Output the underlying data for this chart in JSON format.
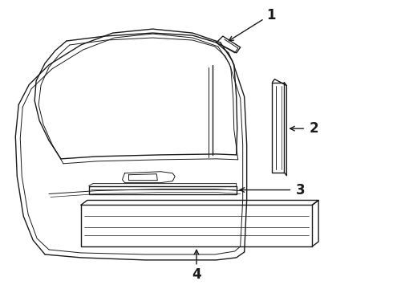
{
  "background_color": "#ffffff",
  "line_color": "#1a1a1a",
  "fig_width": 4.9,
  "fig_height": 3.6,
  "dpi": 100,
  "label_fontsize": 12
}
